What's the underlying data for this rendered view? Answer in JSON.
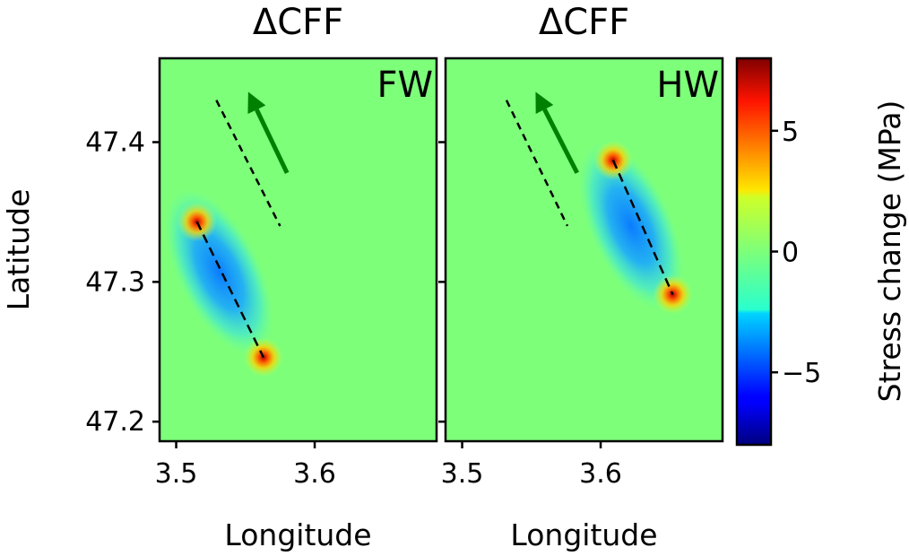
{
  "chart_data": {
    "type": "heatmap",
    "ylabel": "Latitude",
    "ylim": [
      47.186,
      47.46
    ],
    "y_ticks": [
      47.2,
      47.3,
      47.4
    ],
    "y_tick_labels": [
      "47.2",
      "47.3",
      "47.4"
    ],
    "colorbar": {
      "label": "Stress change (MPa)",
      "range": [
        -8,
        8
      ],
      "ticks": [
        -5,
        0,
        5
      ],
      "tick_labels": [
        "−5",
        "0",
        "5"
      ],
      "colormap": "jet"
    },
    "panels": [
      {
        "title": "ΔCFF",
        "tag": "FW",
        "xlabel": "Longitude",
        "xlim": [
          3.488,
          3.688
        ],
        "x_ticks": [
          3.5,
          3.6
        ],
        "x_tick_labels": [
          "3.5",
          "3.6"
        ],
        "fault_trace": [
          [
            3.515,
            47.343
          ],
          [
            3.563,
            47.246
          ]
        ],
        "reference_line": [
          [
            3.529,
            47.43
          ],
          [
            3.575,
            47.34
          ]
        ],
        "slip_arrow": {
          "from": [
            3.58,
            47.378
          ],
          "to": [
            3.552,
            47.436
          ],
          "color": "#008000"
        },
        "lobes": [
          {
            "lon": 3.531,
            "lat": 47.307,
            "peak_mpa": -4.5
          },
          {
            "lon": 3.515,
            "lat": 47.343,
            "peak_mpa": 4.0
          },
          {
            "lon": 3.563,
            "lat": 47.246,
            "peak_mpa": 4.0
          }
        ]
      },
      {
        "title": "ΔCFF",
        "tag": "HW",
        "xlabel": "Longitude",
        "xlim": [
          3.488,
          3.688
        ],
        "x_ticks": [
          3.5,
          3.6
        ],
        "x_tick_labels": [
          "3.5",
          "3.6"
        ],
        "fault_trace": [
          [
            3.609,
            47.387
          ],
          [
            3.652,
            47.291
          ]
        ],
        "reference_line": [
          [
            3.532,
            47.43
          ],
          [
            3.576,
            47.34
          ]
        ],
        "slip_arrow": {
          "from": [
            3.583,
            47.378
          ],
          "to": [
            3.553,
            47.436
          ],
          "color": "#008000"
        },
        "lobes": [
          {
            "lon": 3.622,
            "lat": 47.34,
            "peak_mpa": -4.5
          },
          {
            "lon": 3.609,
            "lat": 47.387,
            "peak_mpa": 4.0
          },
          {
            "lon": 3.652,
            "lat": 47.291,
            "peak_mpa": 4.0
          }
        ]
      }
    ]
  }
}
